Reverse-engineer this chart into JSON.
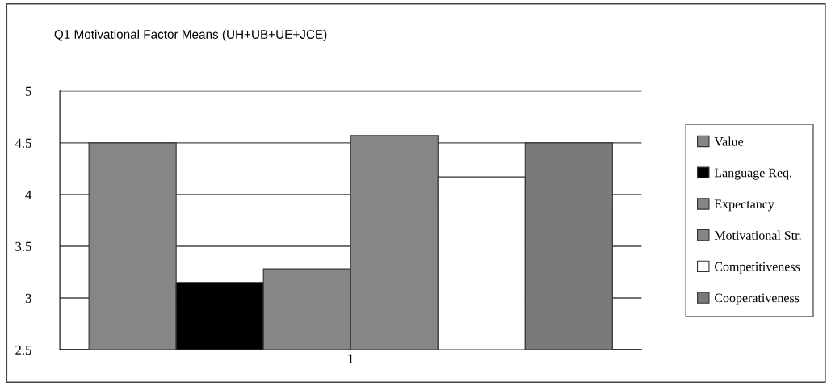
{
  "chart_data": {
    "type": "bar",
    "title": "Q1 Motivational Factor Means (UH+UB+UE+JCE)",
    "categories": [
      "1"
    ],
    "series": [
      {
        "name": "Value",
        "color": "#868686",
        "values": [
          4.5
        ]
      },
      {
        "name": "Language Req.",
        "color": "#000000",
        "values": [
          3.15
        ]
      },
      {
        "name": "Expectancy",
        "color": "#868686",
        "values": [
          3.28
        ]
      },
      {
        "name": "Motivational Str.",
        "color": "#868686",
        "values": [
          4.57
        ]
      },
      {
        "name": "Competitiveness",
        "color": "#ffffff",
        "values": [
          4.17
        ]
      },
      {
        "name": "Cooperativeness",
        "color": "#7a7a7a",
        "values": [
          4.5
        ]
      }
    ],
    "ylim": [
      2.5,
      5
    ],
    "yticks": [
      2.5,
      3,
      3.5,
      4,
      4.5,
      5
    ],
    "grid": "y",
    "legend": "right"
  }
}
